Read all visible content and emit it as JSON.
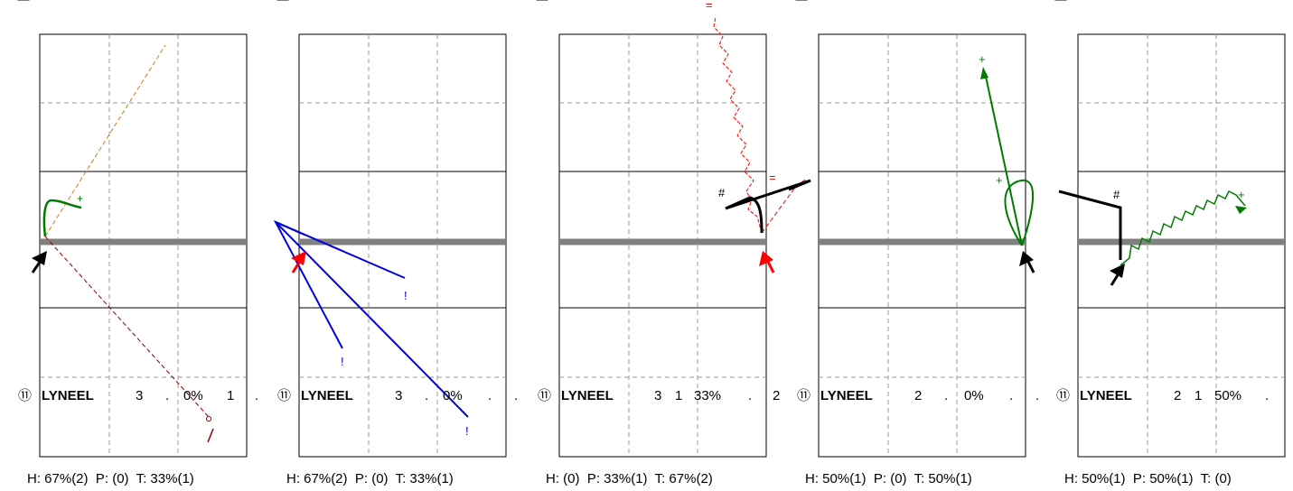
{
  "colors": {
    "court_line": "#000000",
    "grid_dash": "#999999",
    "net": "#808080",
    "player_arrow_black": "#000000",
    "player_arrow_red": "#ff0000",
    "green_trail": "#007a00",
    "blue_trail": "#0000dd",
    "red_trail": "#ff0000",
    "orange_trail": "#d07a20",
    "brown_trail": "#8b0000"
  },
  "chart_data": [
    {
      "type": "court-diagram",
      "player": {
        "number": "⑪",
        "name": "LYNEEL",
        "stats": [
          "3",
          ".",
          "0%",
          "1",
          "."
        ]
      },
      "footer": "H: 67%(2)  P: (0)  T: 33%(1)",
      "markers": [
        "+"
      ],
      "arrow": "black"
    },
    {
      "type": "court-diagram",
      "player": {
        "number": "⑪",
        "name": "LYNEEL",
        "stats": [
          "3",
          ".",
          "0%",
          ".",
          "."
        ]
      },
      "footer": "H: 67%(2)  P: (0)  T: 33%(1)",
      "markers": [
        "!",
        "!",
        "!"
      ],
      "arrow": "red"
    },
    {
      "type": "court-diagram",
      "player": {
        "number": "⑪",
        "name": "LYNEEL",
        "stats": [
          "3",
          "1",
          "33%",
          ".",
          "2"
        ]
      },
      "footer": "H: (0)  P: 33%(1)  T: 67%(2)",
      "markers": [
        "=",
        "=",
        "#"
      ],
      "arrow": "red"
    },
    {
      "type": "court-diagram",
      "player": {
        "number": "⑪",
        "name": "LYNEEL",
        "stats": [
          "2",
          ".",
          "0%",
          ".",
          "."
        ]
      },
      "footer": "H: 50%(1)  P: (0)  T: 50%(1)",
      "markers": [
        "+",
        "+"
      ],
      "arrow": "black"
    },
    {
      "type": "court-diagram",
      "player": {
        "number": "⑪",
        "name": "LYNEEL",
        "stats": [
          "2",
          "1",
          "50%",
          "."
        ]
      },
      "footer": "H: 50%(1)  P: 50%(1)  T: (0)",
      "markers": [
        "#",
        "+"
      ],
      "arrow": "black"
    }
  ]
}
